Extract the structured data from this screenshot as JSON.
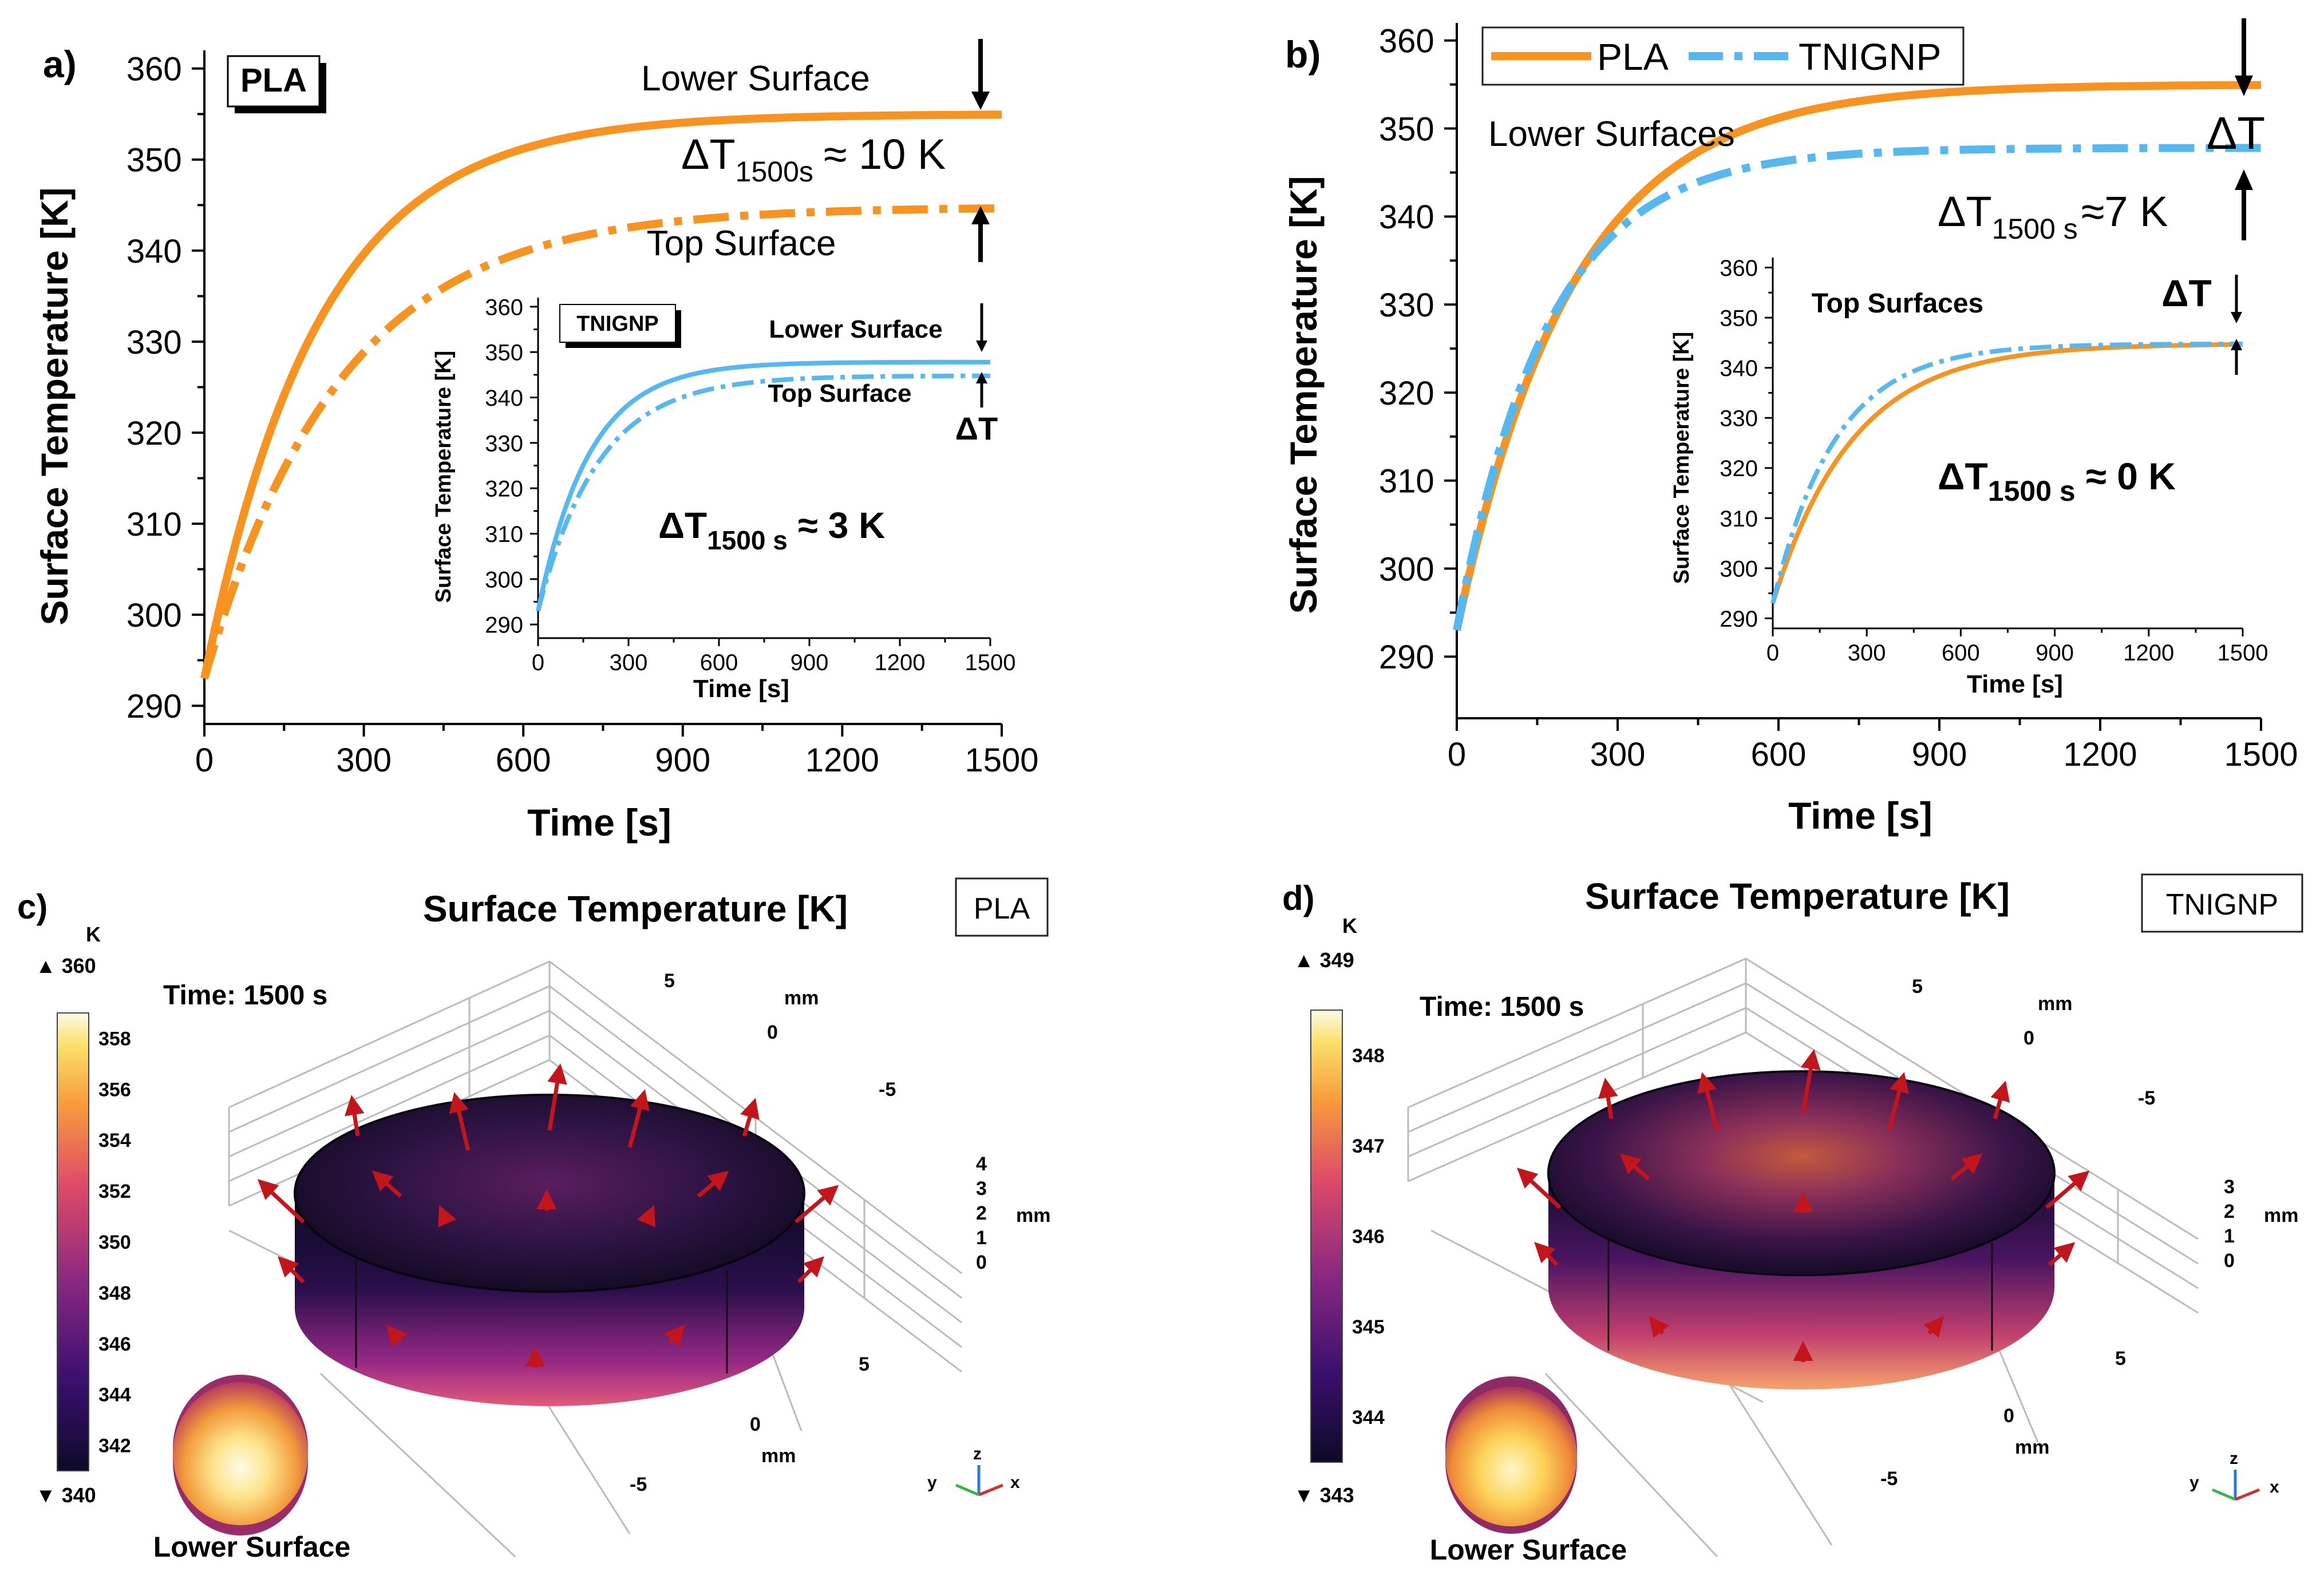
{
  "chart_data": [
    {
      "type": "line",
      "panel_label": "a)",
      "material_badge": "PLA",
      "xlabel": "Time [s]",
      "ylabel": "Surface Temperature [K]",
      "xlim": [
        0,
        1500
      ],
      "ylim": [
        288,
        362
      ],
      "x_ticks": [
        "0",
        "300",
        "600",
        "900",
        "1200",
        "1500"
      ],
      "y_ticks": [
        "290",
        "300",
        "310",
        "320",
        "330",
        "340",
        "350",
        "360"
      ],
      "series": [
        {
          "name": "Lower Surface",
          "style": "solid",
          "color": "#f7931e",
          "t0": 293,
          "tinf": 355,
          "tau": 215
        },
        {
          "name": "Top Surface",
          "style": "dashdot",
          "color": "#f7931e",
          "t0": 293,
          "tinf": 344.8,
          "tau": 255
        }
      ],
      "annotations": {
        "lower": "Lower Surface",
        "top": "Top Surface",
        "delta_main": "ΔT",
        "delta_sub": "1500s",
        "delta_val": "≈ 10 K"
      },
      "inset": {
        "badge": "TNIGNP",
        "xlabel": "Time [s]",
        "ylabel": "Surface Temperature [K]",
        "xlim": [
          0,
          1500
        ],
        "ylim": [
          287,
          362
        ],
        "x_ticks": [
          "0",
          "300",
          "600",
          "900",
          "1200",
          "1500"
        ],
        "y_ticks": [
          "290",
          "300",
          "310",
          "320",
          "330",
          "340",
          "350",
          "360"
        ],
        "series": [
          {
            "name": "Lower Surface",
            "style": "solid",
            "color": "#55b8f0",
            "t0": 293,
            "tinf": 347.8,
            "tau": 170
          },
          {
            "name": "Top Surface",
            "style": "dashdot",
            "color": "#55b8f0",
            "t0": 293,
            "tinf": 344.8,
            "tau": 200
          }
        ],
        "lower": "Lower Surface",
        "top": "Top Surface",
        "delta": "ΔT",
        "delta_main": "ΔT",
        "delta_sub": "1500 s",
        "delta_val": "≈ 3 K"
      }
    },
    {
      "type": "line",
      "panel_label": "b)",
      "xlabel": "Time [s]",
      "ylabel": "Surface Temperature [K]",
      "xlim": [
        0,
        1500
      ],
      "ylim": [
        283,
        362
      ],
      "x_ticks": [
        "0",
        "300",
        "600",
        "900",
        "1200",
        "1500"
      ],
      "y_ticks": [
        "290",
        "300",
        "310",
        "320",
        "330",
        "340",
        "350",
        "360"
      ],
      "legend": [
        "PLA",
        "TNIGNP"
      ],
      "series": [
        {
          "name": "PLA",
          "style": "solid",
          "color": "#f7931e",
          "t0": 293,
          "tinf": 355,
          "tau": 215
        },
        {
          "name": "TNIGNP",
          "style": "dashdot",
          "color": "#55b8f0",
          "t0": 293,
          "tinf": 347.8,
          "tau": 170
        }
      ],
      "annotations": {
        "lower": "Lower Surfaces",
        "delta": "ΔT",
        "delta_main": "ΔT",
        "delta_sub": "1500 s",
        "delta_val": "≈7 K"
      },
      "inset": {
        "title": "Top Surfaces",
        "xlabel": "Time [s]",
        "ylabel": "Surface Temperature [K]",
        "xlim": [
          0,
          1500
        ],
        "ylim": [
          288,
          362
        ],
        "x_ticks": [
          "0",
          "300",
          "600",
          "900",
          "1200",
          "1500"
        ],
        "y_ticks": [
          "290",
          "300",
          "310",
          "320",
          "330",
          "340",
          "350",
          "360"
        ],
        "series": [
          {
            "name": "PLA",
            "style": "solid",
            "color": "#f7931e",
            "t0": 293,
            "tinf": 344.8,
            "tau": 255
          },
          {
            "name": "TNIGNP",
            "style": "dashdot",
            "color": "#55b8f0",
            "t0": 293,
            "tinf": 344.8,
            "tau": 200
          }
        ],
        "delta": "ΔT",
        "delta_main": "ΔT",
        "delta_sub": "1500 s",
        "delta_val": "≈ 0 K"
      }
    },
    {
      "type": "heatmap",
      "panel_label": "c)",
      "title": "Surface Temperature [K]",
      "material_badge": "PLA",
      "time_label": "Time: 1500 s",
      "unit": "K",
      "range_max": "▲ 360",
      "range_min": "▼ 340",
      "colorbar_ticks": [
        "358",
        "356",
        "354",
        "352",
        "350",
        "348",
        "346",
        "344",
        "342"
      ],
      "z_ticks": [
        "4",
        "3",
        "2",
        "1",
        "0"
      ],
      "axis_unit": "mm",
      "y_axis_ticks": [
        "5",
        "0",
        "-5"
      ],
      "x_axis_ticks": [
        "5",
        "0",
        "-5"
      ],
      "inset_label": "Lower Surface",
      "triad": [
        "z",
        "y",
        "x"
      ]
    },
    {
      "type": "heatmap",
      "panel_label": "d)",
      "title": "Surface Temperature [K]",
      "material_badge": "TNIGNP",
      "time_label": "Time: 1500 s",
      "unit": "K",
      "range_max": "▲ 349",
      "range_min": "▼ 343",
      "colorbar_ticks": [
        "348",
        "347",
        "346",
        "345",
        "344"
      ],
      "z_ticks": [
        "3",
        "2",
        "1",
        "0"
      ],
      "axis_unit": "mm",
      "y_axis_ticks": [
        "5",
        "0",
        "-5"
      ],
      "x_axis_ticks": [
        "5",
        "0",
        "-5"
      ],
      "inset_label": "Lower Surface",
      "triad": [
        "z",
        "y",
        "x"
      ]
    }
  ],
  "colors": {
    "pla": "#f7931e",
    "tnignp": "#55b8f0",
    "arrow": "#c3161c"
  }
}
